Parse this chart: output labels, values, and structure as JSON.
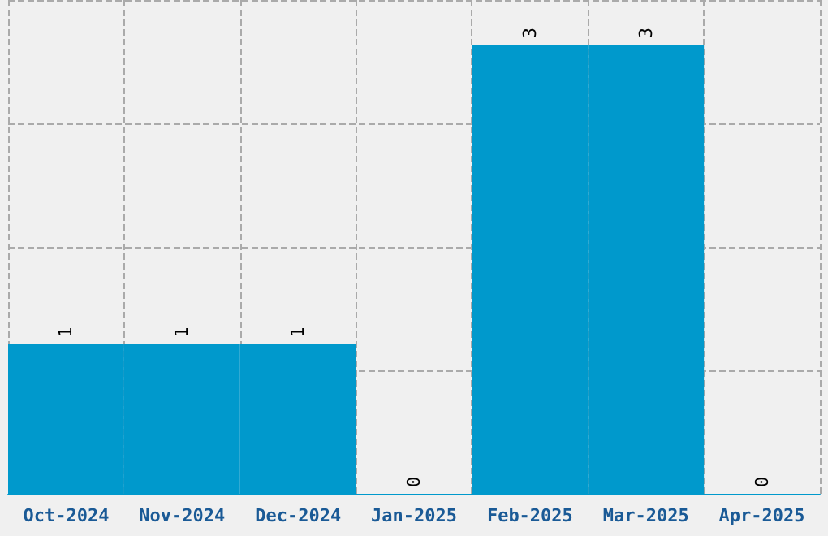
{
  "chart_data": {
    "type": "bar",
    "categories": [
      "Oct-2024",
      "Nov-2024",
      "Dec-2024",
      "Jan-2025",
      "Feb-2025",
      "Mar-2025",
      "Apr-2025"
    ],
    "values": [
      1,
      1,
      1,
      0,
      3,
      3,
      0
    ],
    "color": "#0099cc",
    "data_labels": true,
    "grid": true,
    "tick_labels": "x",
    "ylim": [
      0,
      3.3
    ],
    "yticks": [
      {
        "value": 0,
        "label": null
      },
      {
        "value": 0.825,
        "label": null
      },
      {
        "value": 1.65,
        "label": null
      },
      {
        "value": 2.475,
        "label": null
      },
      {
        "value": 3.3,
        "label": null
      }
    ]
  }
}
